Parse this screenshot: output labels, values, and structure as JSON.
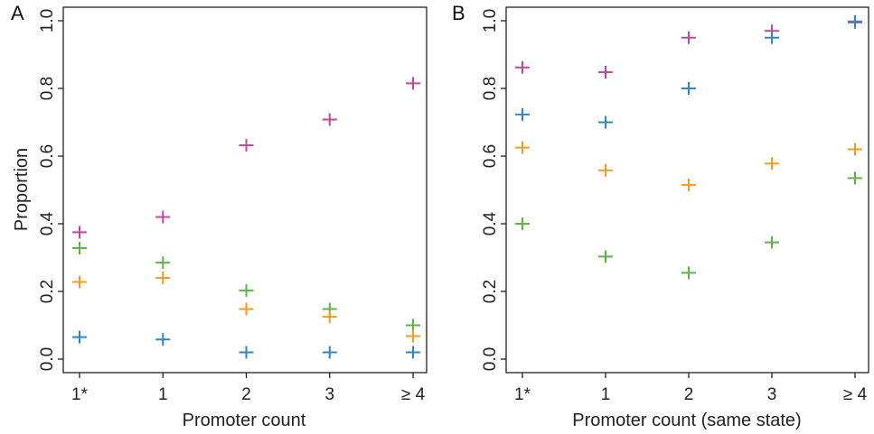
{
  "chart_data": [
    {
      "type": "scatter",
      "panel_label": "A",
      "xlabel": "Promoter count",
      "ylabel": "Proportion",
      "categories": [
        "1*",
        "1",
        "2",
        "3",
        "≥ 4"
      ],
      "ylim": [
        0,
        1.0
      ],
      "yticks": [
        "0.0",
        "0.2",
        "0.4",
        "0.6",
        "0.8",
        "1.0"
      ],
      "grid": false,
      "series": [
        {
          "color": "#c2479e",
          "values": [
            0.375,
            0.42,
            0.632,
            0.708,
            0.815
          ]
        },
        {
          "color": "#5cb545",
          "values": [
            0.328,
            0.285,
            0.203,
            0.148,
            0.1
          ]
        },
        {
          "color": "#f59a23",
          "values": [
            0.228,
            0.24,
            0.148,
            0.125,
            0.068
          ]
        },
        {
          "color": "#2f86c1",
          "values": [
            0.065,
            0.058,
            0.02,
            0.02,
            0.02
          ]
        }
      ]
    },
    {
      "type": "scatter",
      "panel_label": "B",
      "xlabel": "Promoter count (same state)",
      "ylabel": "",
      "categories": [
        "1*",
        "1",
        "2",
        "3",
        "≥ 4"
      ],
      "ylim": [
        0,
        1.0
      ],
      "yticks": [
        "0.0",
        "0.2",
        "0.4",
        "0.6",
        "0.8",
        "1.0"
      ],
      "grid": false,
      "series": [
        {
          "color": "#c2479e",
          "values": [
            0.862,
            0.848,
            0.95,
            0.97,
            0.995
          ]
        },
        {
          "color": "#2f86c1",
          "values": [
            0.723,
            0.7,
            0.8,
            0.95,
            0.998
          ]
        },
        {
          "color": "#f59a23",
          "values": [
            0.625,
            0.558,
            0.515,
            0.578,
            0.62
          ]
        },
        {
          "color": "#5cb545",
          "values": [
            0.4,
            0.303,
            0.255,
            0.345,
            0.535
          ]
        }
      ]
    }
  ]
}
